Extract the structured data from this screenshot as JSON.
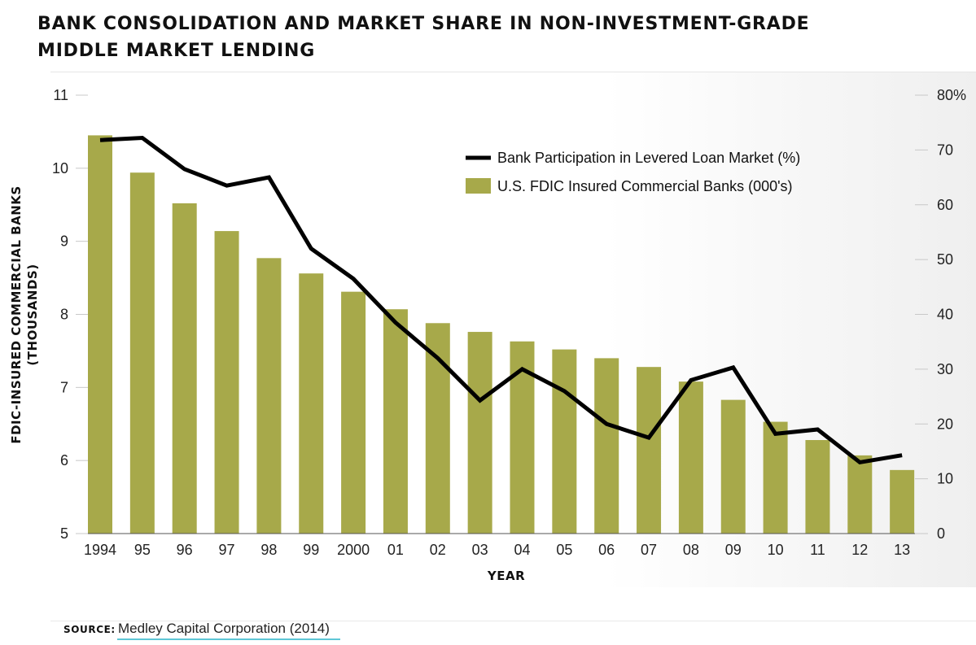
{
  "title": {
    "line1": "BANK CONSOLIDATION AND MARKET SHARE IN NON-INVESTMENT-GRADE",
    "line2": "MIDDLE MARKET LENDING"
  },
  "source": {
    "label": "SOURCE:",
    "text": "Medley Capital Corporation (2014)"
  },
  "colors": {
    "bar": "#a7a94a",
    "line": "#000000",
    "gridline": "#c8c8c8"
  },
  "chart_data": {
    "type": "bar",
    "categories": [
      "1994",
      "95",
      "96",
      "97",
      "98",
      "99",
      "2000",
      "01",
      "02",
      "03",
      "04",
      "05",
      "06",
      "07",
      "08",
      "09",
      "10",
      "11",
      "12",
      "13"
    ],
    "xlabel": "YEAR",
    "ylabel_line1": "FDIC-INSURED COMMERCIAL BANKS",
    "ylabel_line2": "(THOUSANDS)",
    "ylim": [
      5,
      11
    ],
    "yticks": [
      5,
      6,
      7,
      8,
      9,
      10,
      11
    ],
    "y2lim": [
      0,
      80
    ],
    "y2ticks": [
      "0",
      "10",
      "20",
      "30",
      "40",
      "50",
      "60",
      "70",
      "80%"
    ],
    "grid": false,
    "legend_position": "top-right",
    "series": [
      {
        "name": "U.S. FDIC Insured Commercial Banks (000's)",
        "type": "bar",
        "axis": "left",
        "values": [
          10.45,
          9.94,
          9.52,
          9.14,
          8.77,
          8.56,
          8.31,
          8.07,
          7.88,
          7.76,
          7.63,
          7.52,
          7.4,
          7.28,
          7.08,
          6.83,
          6.53,
          6.28,
          6.07,
          5.87
        ]
      },
      {
        "name": "Bank Participation in Levered Loan Market (%)",
        "type": "line",
        "axis": "right",
        "values": [
          71.8,
          72.2,
          66.5,
          63.5,
          65.0,
          52.0,
          46.5,
          38.5,
          32.0,
          24.3,
          30.0,
          26.0,
          20.0,
          17.5,
          28.0,
          30.3,
          18.2,
          19.0,
          13.0,
          14.3
        ]
      }
    ]
  }
}
